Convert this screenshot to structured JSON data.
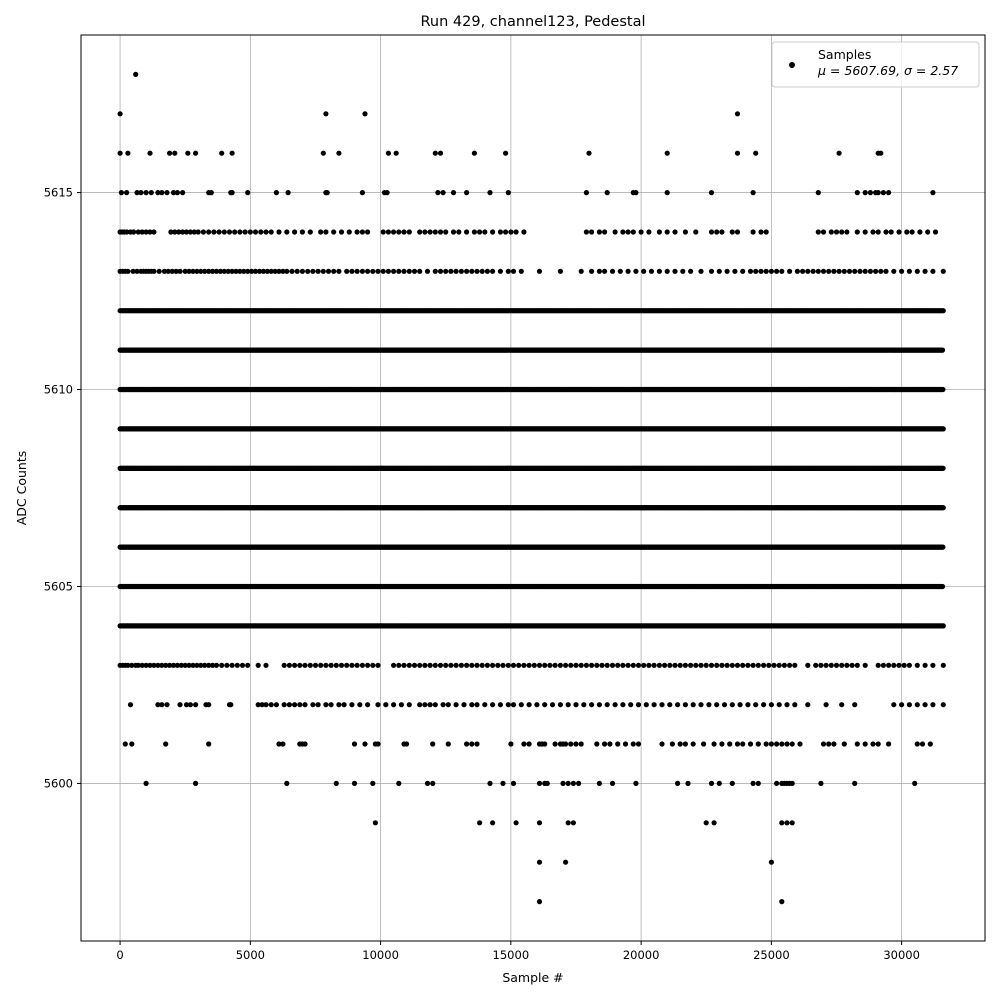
{
  "chart_data": {
    "type": "scatter",
    "title": "Run 429, channel123, Pedestal",
    "xlabel": "Sample #",
    "ylabel": "ADC Counts",
    "xlim": [
      -1500,
      33200
    ],
    "ylim": [
      5596.0,
      5619.0
    ],
    "x_ticks": [
      0,
      5000,
      10000,
      15000,
      20000,
      25000,
      30000
    ],
    "y_ticks": [
      5600,
      5605,
      5610,
      5615
    ],
    "grid": true,
    "legend": {
      "placement": "top-right",
      "entries": [
        {
          "name": "Samples",
          "stats": "μ = 5607.69, σ = 2.57"
        }
      ]
    },
    "series": [
      {
        "name": "Samples",
        "color": "#000000",
        "marker": "circle",
        "x_range": [
          0,
          31600
        ],
        "dense_levels": [
          {
            "y": 5612,
            "spacing": 40
          },
          {
            "y": 5611,
            "spacing": 35
          },
          {
            "y": 5610,
            "spacing": 28
          },
          {
            "y": 5609,
            "spacing": 25
          },
          {
            "y": 5608,
            "spacing": 22
          },
          {
            "y": 5607,
            "spacing": 25
          },
          {
            "y": 5606,
            "spacing": 28
          },
          {
            "y": 5605,
            "spacing": 35
          },
          {
            "y": 5604,
            "spacing": 40
          }
        ],
        "sparse_levels": [
          {
            "y": 5614,
            "x": [
              0,
              80,
              160,
              260,
              400,
              520,
              700,
              850,
              1000,
              1150,
              1300,
              1950,
              2100,
              2250,
              2400,
              2550,
              2700,
              2850,
              3000,
              3200,
              3400,
              3600,
              3800,
              4000,
              4200,
              4400,
              4600,
              4800,
              5000,
              5200,
              5400,
              5600,
              5800,
              6100,
              6400,
              6700,
              7000,
              7300,
              7700,
              7900,
              8200,
              8500,
              8800,
              9100,
              9300,
              9500,
              10100,
              10300,
              10500,
              10700,
              10900,
              11100,
              11500,
              11700,
              11900,
              12100,
              12300,
              12500,
              12800,
              13000,
              13300,
              13600,
              13800,
              14000,
              14300,
              14600,
              14800,
              15000,
              15200,
              15500,
              17900,
              18100,
              18400,
              18600,
              19000,
              19300,
              19500,
              19700,
              20000,
              20300,
              20700,
              21000,
              21300,
              21700,
              22100,
              22700,
              22900,
              23100,
              23500,
              23700,
              24300,
              24600,
              24800,
              26800,
              27000,
              27300,
              27500,
              27700,
              27900,
              28300,
              28600,
              28900,
              29100,
              29400,
              29600,
              29900,
              30200,
              30400,
              30700,
              31000,
              31300
            ]
          },
          {
            "y": 5613,
            "x": [
              0,
              100,
              200,
              300,
              500,
              650,
              800,
              900,
              1000,
              1100,
              1200,
              1300,
              1500,
              1700,
              1850,
              2000,
              2150,
              2300,
              2500,
              2650,
              2800,
              2950,
              3100,
              3250,
              3400,
              3550,
              3700,
              3850,
              4000,
              4150,
              4300,
              4450,
              4600,
              4750,
              4900,
              5050,
              5200,
              5350,
              5500,
              5650,
              5800,
              5950,
              6100,
              6250,
              6400,
              6600,
              6800,
              7000,
              7200,
              7400,
              7600,
              7800,
              8000,
              8200,
              8400,
              8700,
              8900,
              9100,
              9300,
              9500,
              9700,
              9900,
              10100,
              10300,
              10500,
              10700,
              10900,
              11100,
              11300,
              11500,
              11800,
              12100,
              12300,
              12500,
              12700,
              12900,
              13100,
              13300,
              13500,
              13700,
              13900,
              14100,
              14300,
              14600,
              14900,
              15100,
              15400,
              16100,
              16900,
              17700,
              18100,
              18400,
              18600,
              18900,
              19200,
              19500,
              19800,
              20100,
              20400,
              20700,
              21000,
              21300,
              21600,
              21900,
              22300,
              22700,
              23000,
              23300,
              23600,
              23900,
              24200,
              24400,
              24600,
              24800,
              25000,
              25200,
              25400,
              25700,
              26000,
              26200,
              26400,
              26600,
              26800,
              27000,
              27200,
              27400,
              27600,
              27800,
              28000,
              28200,
              28400,
              28600,
              28800,
              29000,
              29200,
              29400,
              29700,
              30000,
              30300,
              30600,
              30900,
              31200,
              31600
            ]
          },
          {
            "y": 5603,
            "x": [
              0,
              100,
              200,
              300,
              450,
              600,
              700,
              850,
              1000,
              1150,
              1300,
              1450,
              1600,
              1750,
              1900,
              2050,
              2200,
              2350,
              2500,
              2650,
              2800,
              2950,
              3100,
              3250,
              3400,
              3550,
              3700,
              3900,
              4100,
              4300,
              4500,
              4700,
              4900,
              5300,
              5600,
              6300,
              6500,
              6700,
              6900,
              7100,
              7300,
              7500,
              7700,
              7900,
              8100,
              8300,
              8500,
              8700,
              8900,
              9100,
              9300,
              9500,
              9700,
              9900,
              10500,
              10700,
              10900,
              11100,
              11300,
              11500,
              11700,
              11900,
              12100,
              12300,
              12500,
              12700,
              12900,
              13100,
              13300,
              13500,
              13700,
              13900,
              14100,
              14300,
              14500,
              14700,
              14900,
              15100,
              15300,
              15500,
              15700,
              15900,
              16100,
              16300,
              16500,
              16700,
              16900,
              17100,
              17300,
              17500,
              17700,
              17900,
              18100,
              18300,
              18500,
              18700,
              18900,
              19100,
              19300,
              19500,
              19700,
              19900,
              20100,
              20300,
              20500,
              20700,
              20900,
              21100,
              21300,
              21500,
              21700,
              21900,
              22100,
              22300,
              22500,
              22700,
              22900,
              23100,
              23300,
              23500,
              23700,
              23900,
              24100,
              24300,
              24500,
              24700,
              24900,
              25100,
              25300,
              25500,
              25700,
              25900,
              26400,
              26700,
              26900,
              27100,
              27300,
              27500,
              27700,
              27900,
              28100,
              28300,
              28600,
              29100,
              29300,
              29500,
              29700,
              29900,
              30100,
              30300,
              30600,
              30900,
              31200,
              31600
            ]
          },
          {
            "y": 5602,
            "x": [
              400,
              1450,
              1600,
              1800,
              2300,
              2550,
              2700,
              2900,
              3300,
              3400,
              4200,
              4250,
              5300,
              5450,
              5600,
              5800,
              6000,
              6300,
              6500,
              6700,
              6900,
              7100,
              7400,
              7600,
              7900,
              8100,
              8400,
              8600,
              8900,
              9200,
              9500,
              9900,
              10200,
              10500,
              10800,
              11100,
              11500,
              11700,
              11900,
              12100,
              12400,
              12600,
              12900,
              13200,
              13500,
              13700,
              14000,
              14300,
              14600,
              14900,
              15100,
              15400,
              15700,
              16000,
              16300,
              16600,
              16900,
              17200,
              17500,
              17800,
              18100,
              18400,
              18700,
              19000,
              19300,
              19600,
              19900,
              20200,
              20500,
              20800,
              21100,
              21400,
              21700,
              22000,
              22300,
              22600,
              22900,
              23200,
              23500,
              23800,
              24100,
              24400,
              24700,
              25000,
              25300,
              25600,
              25900,
              26400,
              27100,
              27700,
              28200,
              29700,
              30000,
              30300,
              30600,
              30900,
              31200,
              31600
            ]
          },
          {
            "y": 5601,
            "x": [
              200,
              450,
              1750,
              3400,
              6100,
              6250,
              6900,
              7000,
              7100,
              9000,
              9400,
              9800,
              9900,
              10900,
              11000,
              12000,
              12600,
              13300,
              13500,
              13700,
              15000,
              15500,
              15700,
              16100,
              16200,
              16300,
              16700,
              16900,
              17000,
              17100,
              17300,
              17500,
              17700,
              18300,
              18600,
              18800,
              19100,
              19400,
              19700,
              19900,
              20800,
              21200,
              21500,
              21700,
              22000,
              22400,
              22800,
              23100,
              23400,
              23700,
              23900,
              24200,
              24500,
              24800,
              25000,
              25200,
              25400,
              25600,
              25800,
              26100,
              27000,
              27200,
              27400,
              27800,
              28300,
              28600,
              28900,
              29100,
              29500,
              30600,
              30800,
              31100
            ]
          },
          {
            "y": 5600,
            "x": [
              1000,
              2900,
              6400,
              8300,
              9000,
              9700,
              10700,
              11800,
              12000,
              14200,
              14700,
              15100,
              16100,
              16300,
              16400,
              17000,
              17200,
              17400,
              17600,
              18400,
              18900,
              19800,
              21400,
              21800,
              22700,
              23000,
              23500,
              24300,
              24500,
              25200,
              25400,
              25500,
              25600,
              25700,
              25800,
              26900,
              28200,
              30500
            ]
          },
          {
            "y": 5599,
            "x": [
              9800,
              13800,
              14300,
              15200,
              16100,
              17200,
              17400,
              22500,
              22800,
              25400,
              25600,
              25800
            ]
          },
          {
            "y": 5598,
            "x": [
              16100,
              17100,
              25000
            ]
          },
          {
            "y": 5597,
            "x": [
              16100,
              25400
            ]
          },
          {
            "y": 5615,
            "x": [
              50,
              250,
              650,
              800,
              1000,
              1200,
              1450,
              1600,
              1800,
              2050,
              2200,
              2400,
              3400,
              3500,
              4250,
              4300,
              4900,
              6000,
              6450,
              7900,
              7950,
              9300,
              10150,
              10250,
              12200,
              12400,
              12800,
              13300,
              14200,
              14900,
              17900,
              18700,
              19700,
              19800,
              21000,
              22700,
              24300,
              26800,
              28300,
              28600,
              28800,
              29000,
              29100,
              29300,
              29500,
              31200
            ]
          },
          {
            "y": 5616,
            "x": [
              0,
              300,
              1150,
              1900,
              2100,
              2600,
              2900,
              3900,
              4300,
              7800,
              8400,
              10300,
              10600,
              12100,
              12300,
              13600,
              14800,
              18000,
              21000,
              23700,
              24400,
              27600,
              29100,
              29200
            ]
          },
          {
            "y": 5617,
            "x": [
              0,
              7900,
              9400,
              23700
            ]
          },
          {
            "y": 5618,
            "x": [
              600
            ]
          }
        ]
      }
    ]
  }
}
